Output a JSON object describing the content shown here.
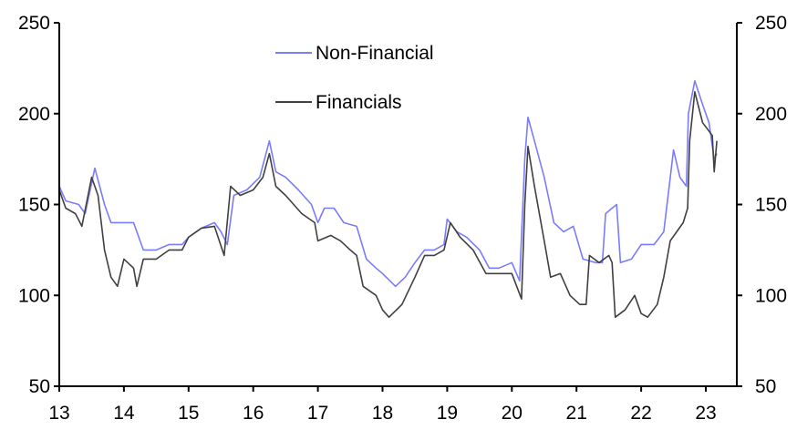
{
  "chart_data": {
    "type": "line",
    "title": "",
    "xlabel": "",
    "ylabel": "",
    "xlim": [
      2013,
      2024
    ],
    "ylim": [
      50,
      250
    ],
    "yticks": [
      50,
      100,
      150,
      200,
      250
    ],
    "xticks": [
      2013,
      2014,
      2015,
      2016,
      2017,
      2018,
      2019,
      2020,
      2021,
      2022,
      2023
    ],
    "xtick_labels": [
      "13",
      "14",
      "15",
      "16",
      "17",
      "18",
      "19",
      "20",
      "21",
      "22",
      "23"
    ],
    "ytick_labels": [
      "50",
      "100",
      "150",
      "200",
      "250"
    ],
    "secondary_y": {
      "ylim": [
        50,
        250
      ],
      "ytick_labels": [
        "50",
        "100",
        "150",
        "200",
        "250"
      ]
    },
    "grid": false,
    "legend": "top-center",
    "series": [
      {
        "name": "Non-Financial",
        "color": "#7b7bff",
        "x": [
          2013.0,
          2013.1,
          2013.3,
          2013.4,
          2013.55,
          2013.7,
          2013.8,
          2014.0,
          2014.15,
          2014.3,
          2014.5,
          2014.7,
          2014.9,
          2015.0,
          2015.2,
          2015.4,
          2015.5,
          2015.6,
          2015.7,
          2015.9,
          2016.1,
          2016.25,
          2016.35,
          2016.5,
          2016.7,
          2016.9,
          2017.0,
          2017.1,
          2017.25,
          2017.4,
          2017.6,
          2017.75,
          2017.9,
          2018.0,
          2018.2,
          2018.35,
          2018.5,
          2018.65,
          2018.8,
          2018.95,
          2019.0,
          2019.15,
          2019.3,
          2019.5,
          2019.65,
          2019.8,
          2020.0,
          2020.12,
          2020.2,
          2020.25,
          2020.35,
          2020.5,
          2020.65,
          2020.8,
          2020.95,
          2021.1,
          2021.3,
          2021.4,
          2021.45,
          2021.55,
          2021.62,
          2021.68,
          2021.85,
          2022.0,
          2022.2,
          2022.35,
          2022.5,
          2022.6,
          2022.7,
          2022.73,
          2022.83,
          2022.95,
          2023.05,
          2023.13,
          2023.17
        ],
        "y": [
          160,
          152,
          150,
          145,
          170,
          150,
          140,
          140,
          140,
          125,
          125,
          128,
          128,
          132,
          137,
          140,
          135,
          128,
          155,
          158,
          165,
          185,
          168,
          165,
          158,
          150,
          140,
          148,
          148,
          140,
          138,
          120,
          115,
          112,
          105,
          110,
          118,
          125,
          125,
          128,
          142,
          135,
          132,
          125,
          115,
          115,
          118,
          108,
          175,
          198,
          185,
          165,
          140,
          135,
          138,
          120,
          118,
          118,
          145,
          148,
          150,
          118,
          120,
          128,
          128,
          135,
          180,
          165,
          160,
          200,
          218,
          205,
          195,
          175,
          178
        ]
      },
      {
        "name": "Financials",
        "color": "#404040",
        "x": [
          2013.0,
          2013.1,
          2013.25,
          2013.35,
          2013.5,
          2013.6,
          2013.7,
          2013.8,
          2013.9,
          2014.0,
          2014.15,
          2014.2,
          2014.3,
          2014.5,
          2014.7,
          2014.9,
          2015.0,
          2015.2,
          2015.4,
          2015.55,
          2015.65,
          2015.8,
          2016.0,
          2016.15,
          2016.25,
          2016.35,
          2016.5,
          2016.75,
          2016.95,
          2017.0,
          2017.2,
          2017.35,
          2017.5,
          2017.6,
          2017.7,
          2017.9,
          2018.0,
          2018.1,
          2018.3,
          2018.5,
          2018.65,
          2018.8,
          2018.95,
          2019.05,
          2019.2,
          2019.4,
          2019.6,
          2019.8,
          2020.0,
          2020.15,
          2020.2,
          2020.25,
          2020.35,
          2020.5,
          2020.6,
          2020.75,
          2020.9,
          2021.05,
          2021.15,
          2021.2,
          2021.35,
          2021.5,
          2021.55,
          2021.6,
          2021.75,
          2021.9,
          2022.0,
          2022.1,
          2022.25,
          2022.35,
          2022.45,
          2022.55,
          2022.65,
          2022.72,
          2022.75,
          2022.83,
          2022.95,
          2023.1,
          2023.13,
          2023.17
        ],
        "y": [
          158,
          148,
          145,
          138,
          165,
          155,
          125,
          110,
          105,
          120,
          115,
          105,
          120,
          120,
          125,
          125,
          132,
          137,
          138,
          122,
          160,
          155,
          158,
          165,
          178,
          160,
          155,
          145,
          140,
          130,
          133,
          130,
          125,
          122,
          105,
          100,
          92,
          88,
          95,
          110,
          122,
          122,
          125,
          140,
          132,
          125,
          112,
          112,
          112,
          98,
          150,
          182,
          160,
          130,
          110,
          112,
          100,
          95,
          95,
          122,
          118,
          122,
          118,
          88,
          92,
          100,
          90,
          88,
          95,
          110,
          130,
          135,
          140,
          148,
          185,
          212,
          195,
          188,
          168,
          185
        ]
      }
    ]
  }
}
